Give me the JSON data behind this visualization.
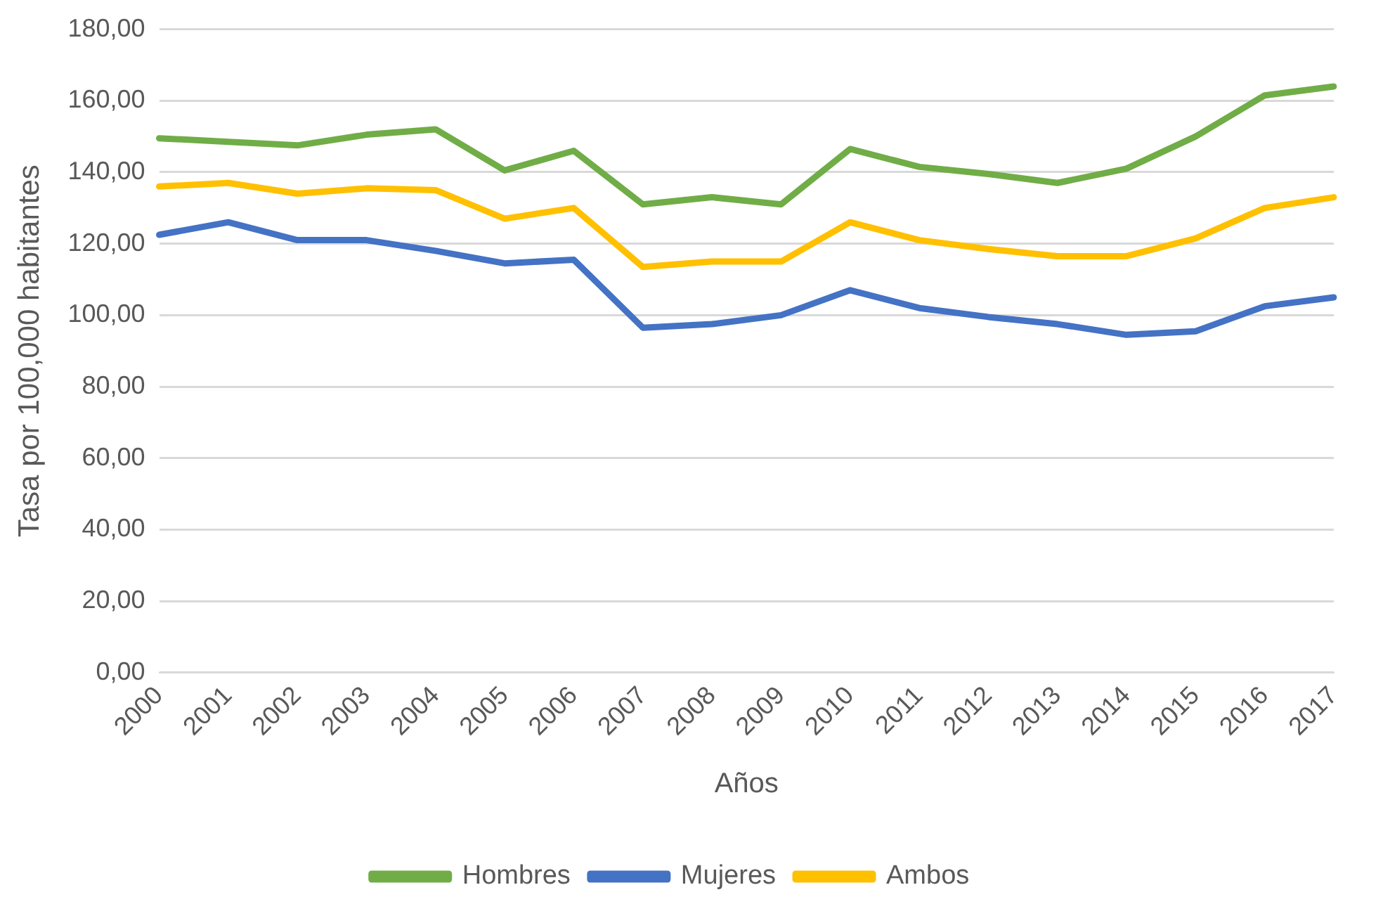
{
  "chart_data": {
    "type": "line",
    "xlabel": "Años",
    "ylabel": "Tasa por 100,000 habitantes",
    "categories": [
      "2000",
      "2001",
      "2002",
      "2003",
      "2004",
      "2005",
      "2006",
      "2007",
      "2008",
      "2009",
      "2010",
      "2011",
      "2012",
      "2013",
      "2014",
      "2015",
      "2016",
      "2017"
    ],
    "series": [
      {
        "name": "Hombres",
        "color": "#70ad47",
        "values": [
          149.5,
          148.5,
          147.5,
          150.5,
          152,
          140.5,
          146,
          131,
          133,
          131,
          146.5,
          141.5,
          139.5,
          137,
          141,
          150,
          161.5,
          164
        ]
      },
      {
        "name": "Mujeres",
        "color": "#4472c4",
        "values": [
          122.5,
          126,
          121,
          121,
          118,
          114.5,
          115.5,
          96.5,
          97.5,
          100,
          107,
          102,
          99.5,
          97.5,
          94.5,
          95.5,
          102.5,
          105
        ]
      },
      {
        "name": "Ambos",
        "color": "#ffc000",
        "values": [
          136,
          137,
          134,
          135.5,
          135,
          127,
          130,
          113.5,
          115,
          115,
          126,
          121,
          118.5,
          116.5,
          116.5,
          121.5,
          130,
          133
        ]
      }
    ],
    "ylim": [
      0,
      180
    ],
    "yticks": [
      {
        "value": 0,
        "label": "0,00"
      },
      {
        "value": 20,
        "label": "20,00"
      },
      {
        "value": 40,
        "label": "40,00"
      },
      {
        "value": 60,
        "label": "60,00"
      },
      {
        "value": 80,
        "label": "80,00"
      },
      {
        "value": 100,
        "label": "100,00"
      },
      {
        "value": 120,
        "label": "120,00"
      },
      {
        "value": 140,
        "label": "140,00"
      },
      {
        "value": 160,
        "label": "160,00"
      },
      {
        "value": 180,
        "label": "180,00"
      }
    ],
    "grid": "y",
    "legend": "bottom",
    "marker": "none",
    "line_style": "solid"
  }
}
